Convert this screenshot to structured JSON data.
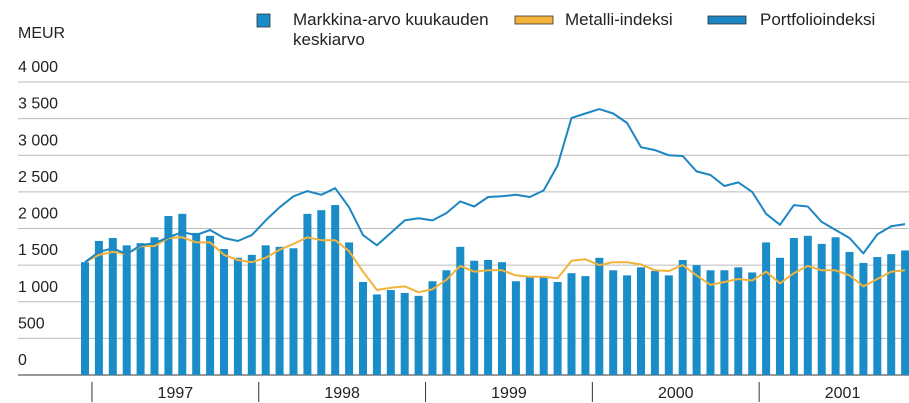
{
  "chart_data": {
    "type": "bar-line",
    "y_label": "MEUR",
    "categories": [
      null,
      null,
      null,
      null,
      null,
      null,
      null,
      null,
      null,
      null,
      null,
      null,
      null,
      null,
      null,
      null,
      null,
      null,
      null,
      null,
      null,
      null,
      null,
      null,
      null,
      null,
      null,
      null,
      null,
      null,
      null,
      null,
      null,
      null,
      null,
      null,
      null,
      null,
      null,
      null,
      null,
      null,
      null,
      null,
      null,
      null,
      null,
      null,
      null,
      null,
      null,
      null,
      null,
      null,
      null,
      null,
      null,
      null,
      null,
      null
    ],
    "year_labels": [
      "1997",
      "1998",
      "1999",
      "2000",
      "2001"
    ],
    "ylim": [
      0,
      4000
    ],
    "yticks": [
      0,
      500,
      {
        "value": 1000,
        "label": "1 000"
      },
      {
        "value": 1500,
        "label": "1 500"
      },
      {
        "value": 2000,
        "label": "2 000"
      },
      {
        "value": 2500,
        "label": "2 500"
      },
      {
        "value": 3000,
        "label": "3 000"
      },
      {
        "value": 3500,
        "label": "3 500"
      },
      {
        "value": 4000,
        "label": "4 000"
      }
    ],
    "grid": true,
    "series": [
      {
        "name": "Markkina-arvo kuukauden keskiarvo",
        "kind": "bar",
        "color": "#1a8cc7",
        "values": [
          1540,
          1830,
          1870,
          1770,
          1800,
          1880,
          2170,
          2200,
          1940,
          1900,
          1720,
          1600,
          1640,
          1770,
          1750,
          1730,
          2200,
          2250,
          2320,
          1810,
          1270,
          1100,
          1160,
          1120,
          1080,
          1280,
          1430,
          1750,
          1560,
          1570,
          1540,
          1280,
          1350,
          1350,
          1270,
          1390,
          1350,
          1600,
          1430,
          1360,
          1470,
          1420,
          1360,
          1570,
          1500,
          1430,
          1430,
          1470,
          1400,
          1810,
          1600,
          1870,
          1900,
          1790,
          1880,
          1680,
          1530,
          1610,
          1650,
          1700
        ]
      },
      {
        "name": "Metalli-indeksi",
        "kind": "line",
        "color": "#f2b33d",
        "values": [
          1540,
          1640,
          1680,
          1650,
          1760,
          1760,
          1870,
          1880,
          1810,
          1810,
          1640,
          1570,
          1540,
          1600,
          1710,
          1790,
          1880,
          1840,
          1840,
          1690,
          1410,
          1160,
          1190,
          1210,
          1130,
          1170,
          1300,
          1490,
          1410,
          1430,
          1430,
          1360,
          1340,
          1340,
          1320,
          1560,
          1580,
          1500,
          1540,
          1540,
          1510,
          1430,
          1420,
          1500,
          1360,
          1230,
          1270,
          1310,
          1290,
          1410,
          1250,
          1390,
          1490,
          1430,
          1430,
          1360,
          1210,
          1310,
          1410,
          1430
        ]
      },
      {
        "name": "Portfolioindeksi",
        "kind": "line",
        "color": "#1b86c2",
        "values": [
          1540,
          1680,
          1730,
          1650,
          1770,
          1800,
          1880,
          1950,
          1910,
          1980,
          1870,
          1830,
          1910,
          2110,
          2290,
          2440,
          2510,
          2460,
          2550,
          2290,
          1910,
          1770,
          1940,
          2110,
          2140,
          2110,
          2210,
          2370,
          2300,
          2430,
          2440,
          2460,
          2430,
          2520,
          2860,
          3510,
          3570,
          3630,
          3570,
          3440,
          3110,
          3070,
          3000,
          2990,
          2780,
          2730,
          2580,
          2630,
          2500,
          2200,
          2050,
          2320,
          2300,
          2090,
          1980,
          1870,
          1660,
          1920,
          2030,
          2060
        ]
      }
    ]
  }
}
